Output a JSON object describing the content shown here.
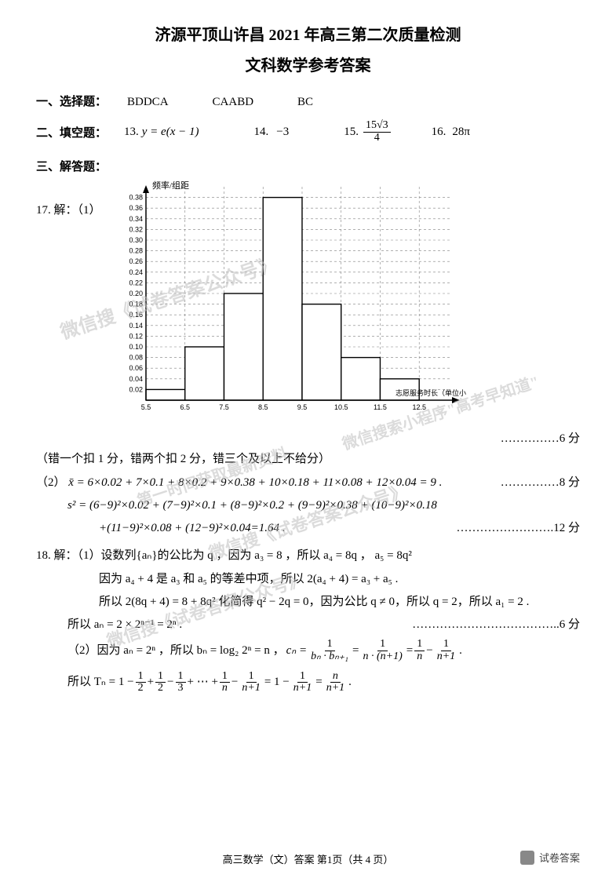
{
  "title_line1": "济源平顶山许昌 2021 年高三第二次质量检测",
  "title_line2": "文科数学参考答案",
  "section1": {
    "label": "一、选择题：",
    "group1": "BDDCA",
    "group2": "CAABD",
    "group3": "BC"
  },
  "section2": {
    "label": "二、填空题：",
    "q13_label": "13.",
    "q13_val": "y = e(x − 1)",
    "q14_label": "14.",
    "q14_val": "−3",
    "q15_label": "15.",
    "q15_num": "15√3",
    "q15_den": "4",
    "q16_label": "16.",
    "q16_val": "28π"
  },
  "section3_label": "三、解答题：",
  "q17": {
    "head": "17. 解：（1）",
    "chart": {
      "type": "histogram",
      "y_axis_label": "频率/组距",
      "x_axis_label_tail": "志愿服务时长（单位小时）",
      "x_ticks": [
        "5.5",
        "6.5",
        "7.5",
        "8.5",
        "9.5",
        "10.5",
        "11.5",
        "12.5"
      ],
      "y_max": 0.4,
      "y_tick_step": 0.02,
      "y_ticks": [
        "0.02",
        "0.04",
        "0.06",
        "0.08",
        "0.10",
        "0.12",
        "0.14",
        "0.16",
        "0.18",
        "0.20",
        "0.22",
        "0.24",
        "0.26",
        "0.28",
        "0.30",
        "0.32",
        "0.34",
        "0.36",
        "0.38"
      ],
      "bars": [
        0.02,
        0.1,
        0.2,
        0.38,
        0.18,
        0.08,
        0.04
      ],
      "bar_color": "#ffffff",
      "bar_border": "#000000",
      "grid_color": "#808080",
      "grid_dash": "3,3",
      "axis_color": "#000000",
      "tick_fontsize": 9,
      "ylabel_fontsize": 11
    },
    "score1": "……………6 分",
    "note": "（错一个扣 1 分，错两个扣 2 分，错三个及以上不给分）",
    "part2_label": "（2）",
    "mean_expr": "x̄ = 6×0.02 + 7×0.1 + 8×0.2 + 9×0.38 + 10×0.18 + 11×0.08 + 12×0.04 = 9 .",
    "score2": "……………8 分",
    "var_line1": "s² = (6−9)²×0.02 + (7−9)²×0.1 + (8−9)²×0.2 + (9−9)²×0.38 + (10−9)²×0.18",
    "var_line2": "+(11−9)²×0.08 + (12−9)²×0.04=1.64 .",
    "score3": "…………………….12 分"
  },
  "q18": {
    "head": "18. 解：（1）设数列{aₙ}的公比为 q ，因为 a₃ = 8 ，所以 a₄ = 8q ， a₅ = 8q²",
    "l2": "因为 a₄ + 4 是 a₃ 和 a₅ 的等差中项，所以 2(a₄ + 4) = a₃ + a₅ .",
    "l3": "所以 2(8q + 4) = 8 + 8q² 化简得 q² − 2q = 0，因为公比 q ≠ 0，所以 q = 2，所以 a₁ = 2 .",
    "l4": "所以 aₙ = 2 × 2ⁿ⁻¹ = 2ⁿ .",
    "score1": "………………………………..6 分",
    "p2a": "（2）因为 aₙ = 2ⁿ ，所以 bₙ = log₂ 2ⁿ = n ，",
    "cn_lhs": "cₙ =",
    "cn_f1_num": "1",
    "cn_f1_den": "bₙ · bₙ₊₁",
    "cn_f2_num": "1",
    "cn_f2_den": "n · (n+1)",
    "cn_f3a_num": "1",
    "cn_f3a_den": "n",
    "cn_f3b_num": "1",
    "cn_f3b_den": "n+1",
    "tn_lhs": "所以 Tₙ = 1 −",
    "tn_f1_num": "1",
    "tn_f1_den": "2",
    "tn_plus": " + ",
    "tn_f2_num": "1",
    "tn_f2_den": "2",
    "tn_minus": " − ",
    "tn_f3_num": "1",
    "tn_f3_den": "3",
    "tn_dots": " + ⋯ + ",
    "tn_f4_num": "1",
    "tn_f4_den": "n",
    "tn_f5_num": "1",
    "tn_f5_den": "n+1",
    "tn_eq": " = 1 − ",
    "tn_f6_num": "1",
    "tn_f6_den": "n+1",
    "tn_eq2": " = ",
    "tn_f7_num": "n",
    "tn_f7_den": "n+1",
    "tn_tail": " ."
  },
  "watermarks": {
    "w1": "微信搜《试卷答案公众号》",
    "w2": "微信搜索小程序\"高考早知道\"",
    "w2b": "第一时间获取最新资料",
    "w3": "微信搜《试卷答案公众号》",
    "w4": "微信搜《试卷答案公众号》"
  },
  "footer": "高三数学（文）答案   第1页（共 4 页）",
  "footer_source": "试卷答案"
}
